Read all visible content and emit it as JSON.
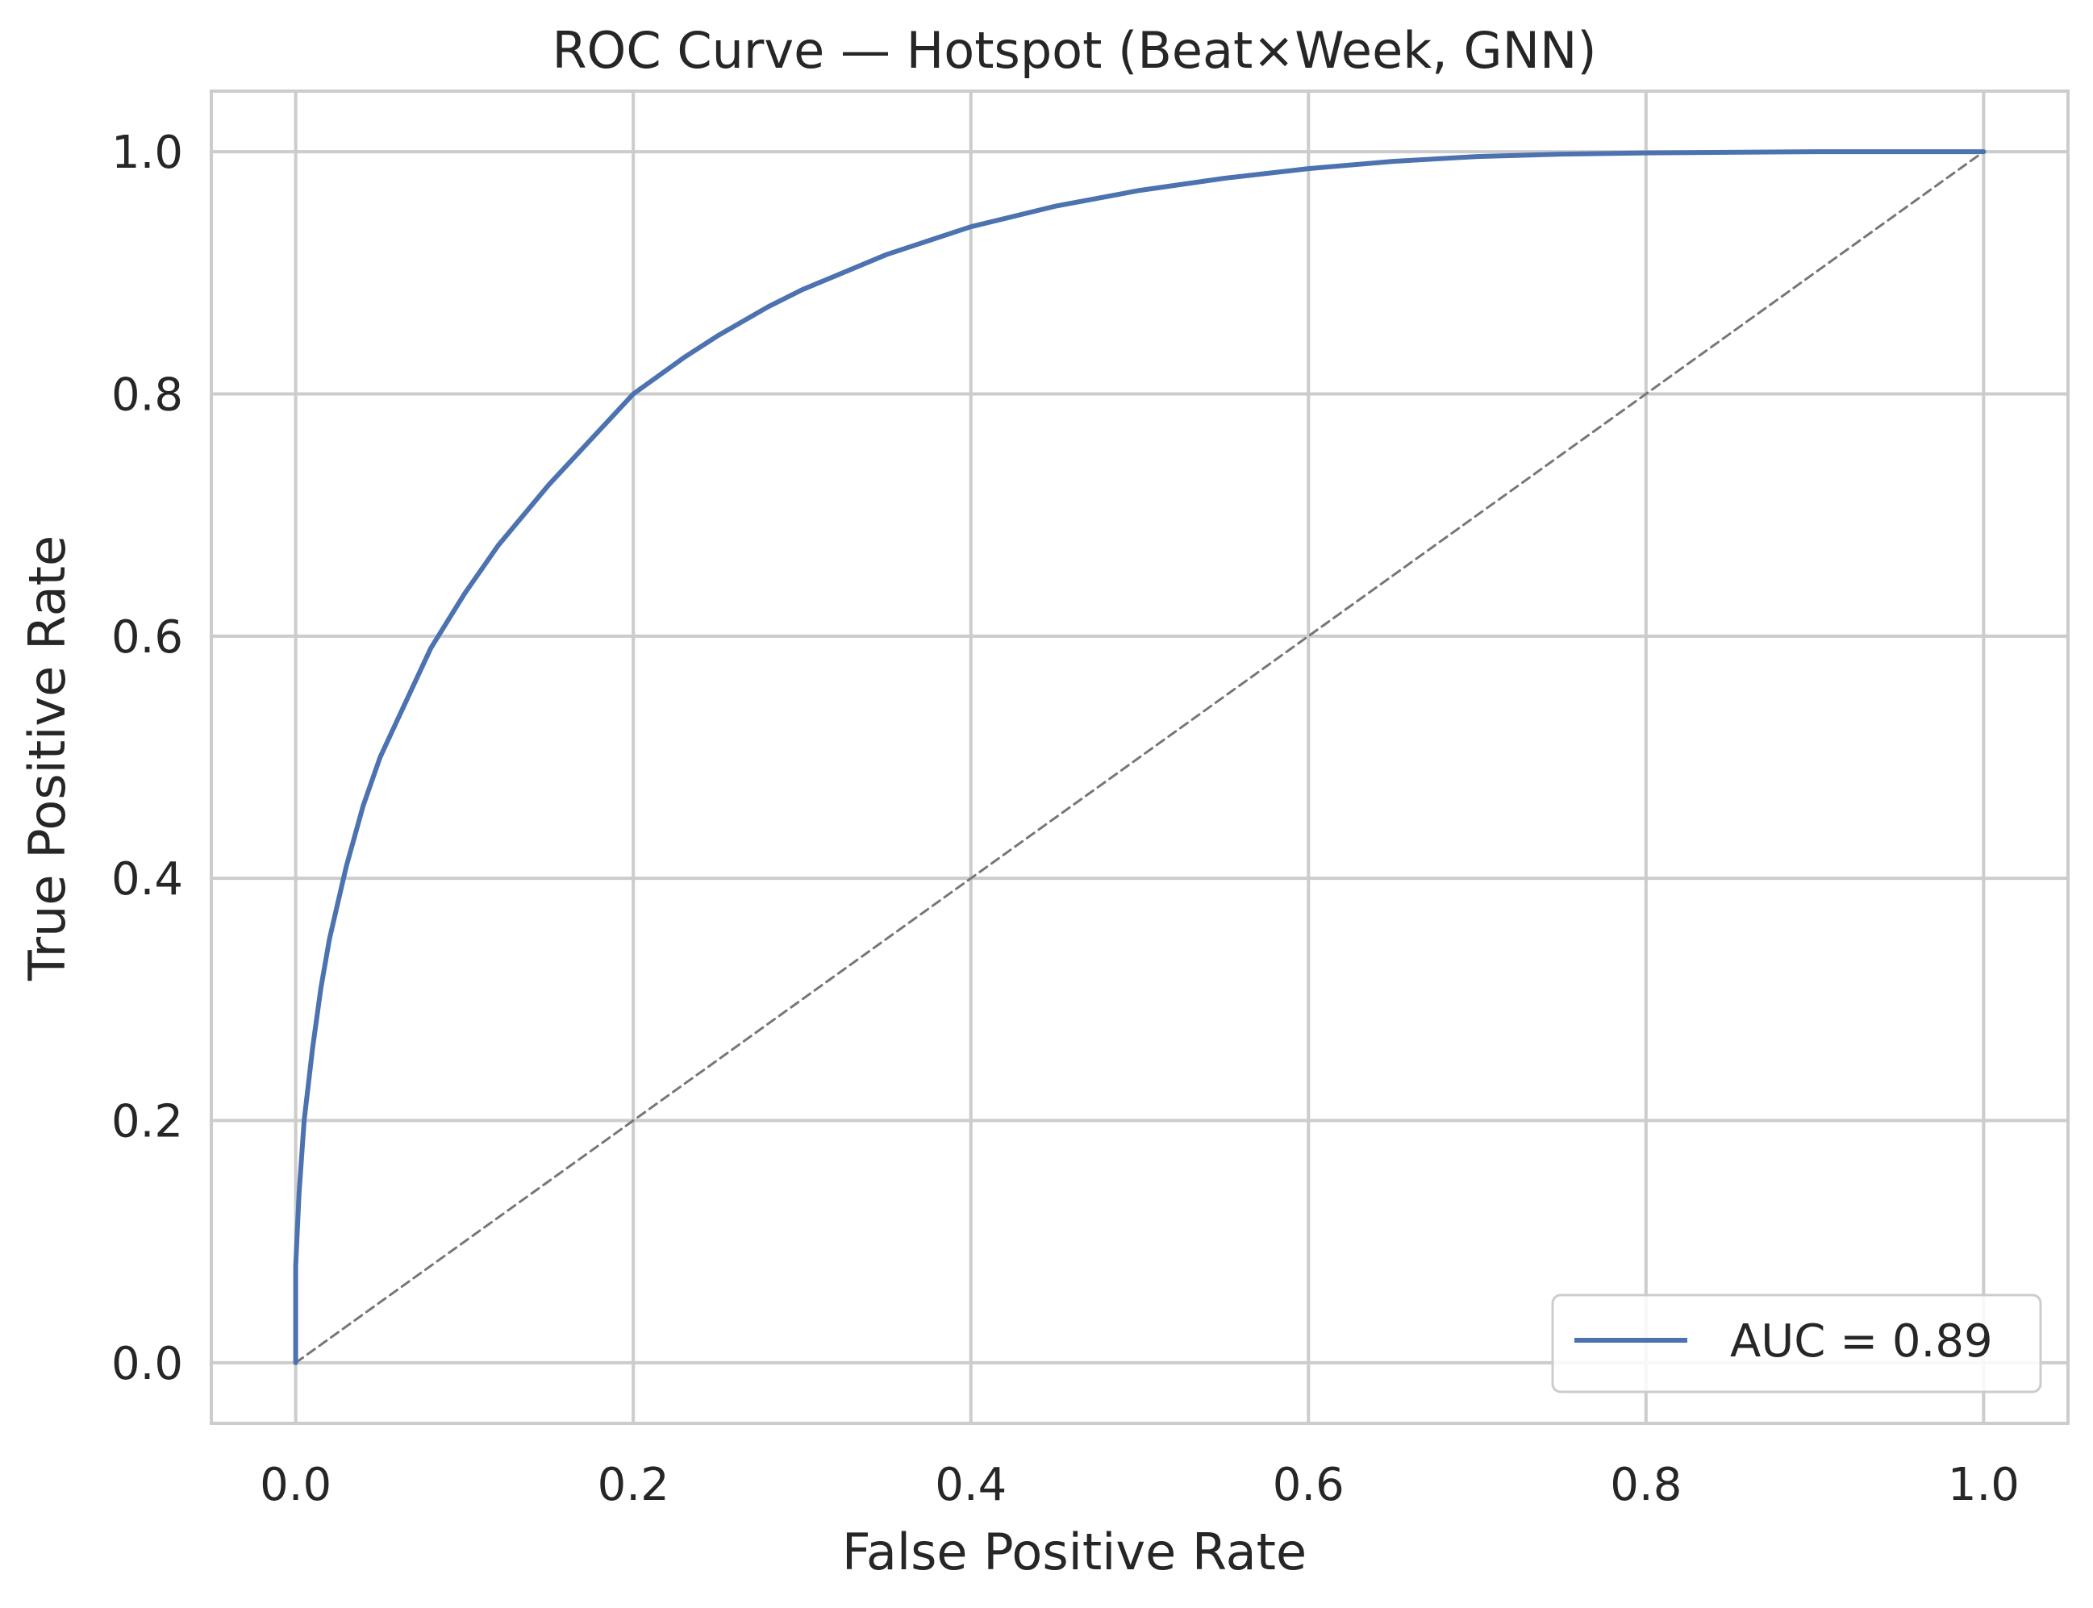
{
  "chart_data": {
    "type": "line",
    "title": "ROC Curve — Hotspot (Beat×Week, GNN)",
    "xlabel": "False Positive Rate",
    "ylabel": "True Positive Rate",
    "xlim": [
      -0.05,
      1.05
    ],
    "ylim": [
      -0.05,
      1.05
    ],
    "xticks": [
      0.0,
      0.2,
      0.4,
      0.6,
      0.8,
      1.0
    ],
    "yticks": [
      0.0,
      0.2,
      0.4,
      0.6,
      0.8,
      1.0
    ],
    "xtick_labels": [
      "0.0",
      "0.2",
      "0.4",
      "0.6",
      "0.8",
      "1.0"
    ],
    "ytick_labels": [
      "0.0",
      "0.2",
      "0.4",
      "0.6",
      "0.8",
      "1.0"
    ],
    "grid": true,
    "legend_position": "lower-right",
    "series": [
      {
        "name": "AUC = 0.89",
        "color": "#4c72b0",
        "x": [
          0.0,
          0.0,
          0.002,
          0.005,
          0.01,
          0.015,
          0.02,
          0.03,
          0.04,
          0.05,
          0.06,
          0.08,
          0.1,
          0.12,
          0.15,
          0.18,
          0.2,
          0.23,
          0.25,
          0.28,
          0.3,
          0.35,
          0.4,
          0.45,
          0.5,
          0.55,
          0.6,
          0.65,
          0.7,
          0.75,
          0.8,
          0.9,
          1.0
        ],
        "y": [
          0.0,
          0.08,
          0.14,
          0.2,
          0.26,
          0.31,
          0.35,
          0.41,
          0.46,
          0.5,
          0.53,
          0.59,
          0.635,
          0.675,
          0.725,
          0.77,
          0.8,
          0.83,
          0.848,
          0.872,
          0.886,
          0.915,
          0.938,
          0.955,
          0.968,
          0.978,
          0.986,
          0.992,
          0.996,
          0.998,
          0.999,
          1.0,
          1.0
        ]
      },
      {
        "name": "",
        "color": "#777777",
        "dashed": true,
        "x": [
          0.0,
          1.0
        ],
        "y": [
          0.0,
          1.0
        ]
      }
    ]
  }
}
